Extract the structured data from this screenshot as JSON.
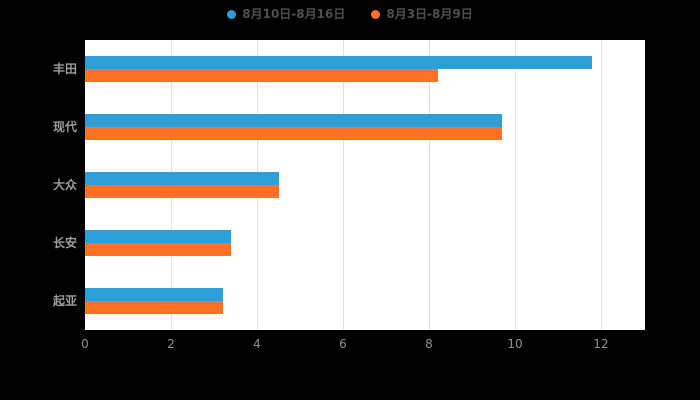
{
  "chart_data": {
    "type": "bar",
    "orientation": "horizontal",
    "title": "",
    "categories": [
      "丰田",
      "现代",
      "大众",
      "长安",
      "起亚"
    ],
    "series": [
      {
        "name": "8月10日-8月16日",
        "color": "#2E9FD6",
        "values": [
          11.8,
          9.7,
          4.5,
          3.4,
          3.2
        ]
      },
      {
        "name": "8月3日-8月9日",
        "color": "#FF7124",
        "values": [
          8.2,
          9.7,
          4.5,
          3.4,
          3.2
        ]
      }
    ],
    "xlim": [
      0,
      12
    ],
    "xticks": [
      0,
      2,
      4,
      6,
      8,
      10,
      12
    ],
    "grid": true,
    "legend_position": "top",
    "plot_background": "#ffffff",
    "page_background": "#000000",
    "axis_label_color": "#9c9c9c",
    "tick_label_color": "#8f8f8f",
    "gridline_color": "#e3e3e3"
  }
}
